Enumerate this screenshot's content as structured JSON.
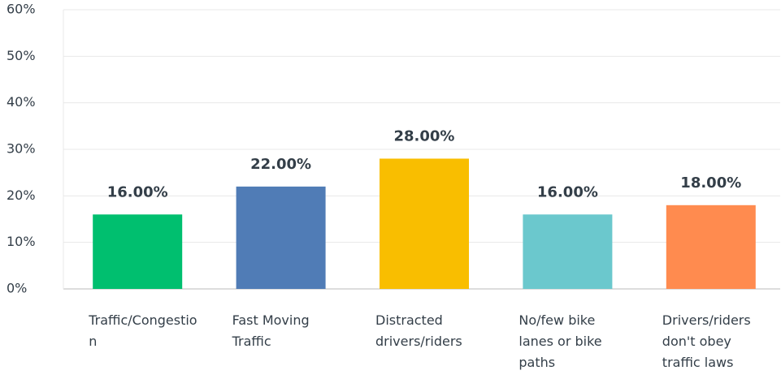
{
  "chart_data": {
    "type": "bar",
    "categories": [
      "Traffic/Congestion",
      "Fast Moving Traffic",
      "Distracted drivers/riders",
      "No/few bike lanes or bike paths",
      "Drivers/riders don't obey traffic laws"
    ],
    "values": [
      16,
      22,
      28,
      16,
      18
    ],
    "value_labels": [
      "16.00%",
      "22.00%",
      "28.00%",
      "16.00%",
      "18.00%"
    ],
    "colors": [
      "#00bf6f",
      "#507cb6",
      "#f9be00",
      "#6bc8cd",
      "#ff8b4f"
    ],
    "ylim": [
      0,
      60
    ],
    "yticks": [
      {
        "value": 0,
        "label": "0%"
      },
      {
        "value": 10,
        "label": "10%"
      },
      {
        "value": 20,
        "label": "20%"
      },
      {
        "value": 30,
        "label": "30%"
      },
      {
        "value": 40,
        "label": "40%"
      },
      {
        "value": 50,
        "label": "50%"
      },
      {
        "value": 60,
        "label": "60%"
      }
    ],
    "grid": true
  }
}
